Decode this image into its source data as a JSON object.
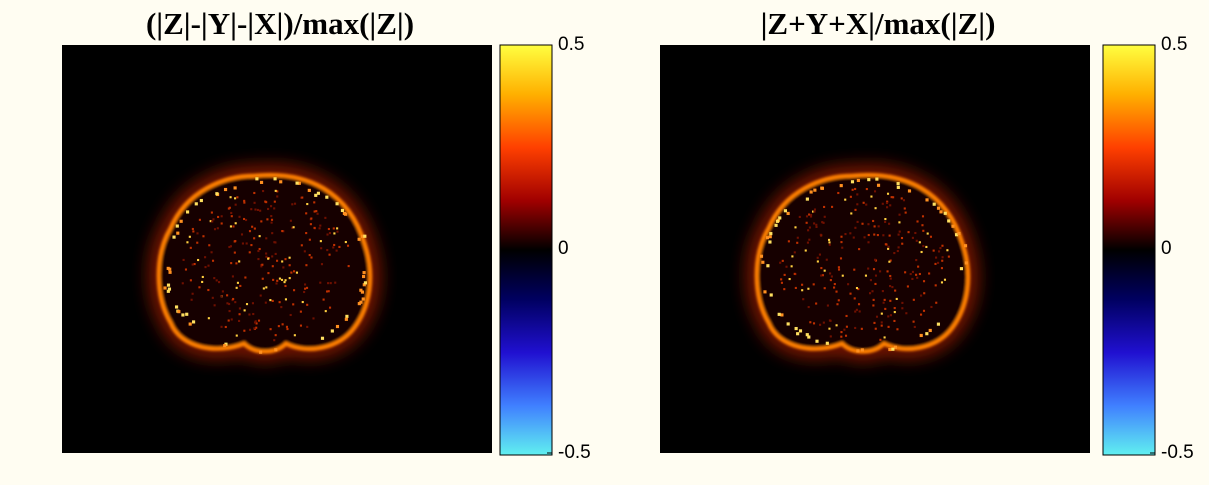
{
  "chart_data": [
    {
      "type": "heatmap",
      "title": "(|Z|-|Y|-|X|)/max(|Z|)",
      "colorbar": {
        "lim": [
          -0.5,
          0.5
        ],
        "ticks": [
          0.5,
          0,
          -0.5
        ]
      }
    },
    {
      "type": "heatmap",
      "title": "|Z+Y+X|/max(|Z|)",
      "colorbar": {
        "lim": [
          -0.5,
          0.5
        ],
        "ticks": [
          0.5,
          0,
          -0.5
        ]
      }
    }
  ]
}
